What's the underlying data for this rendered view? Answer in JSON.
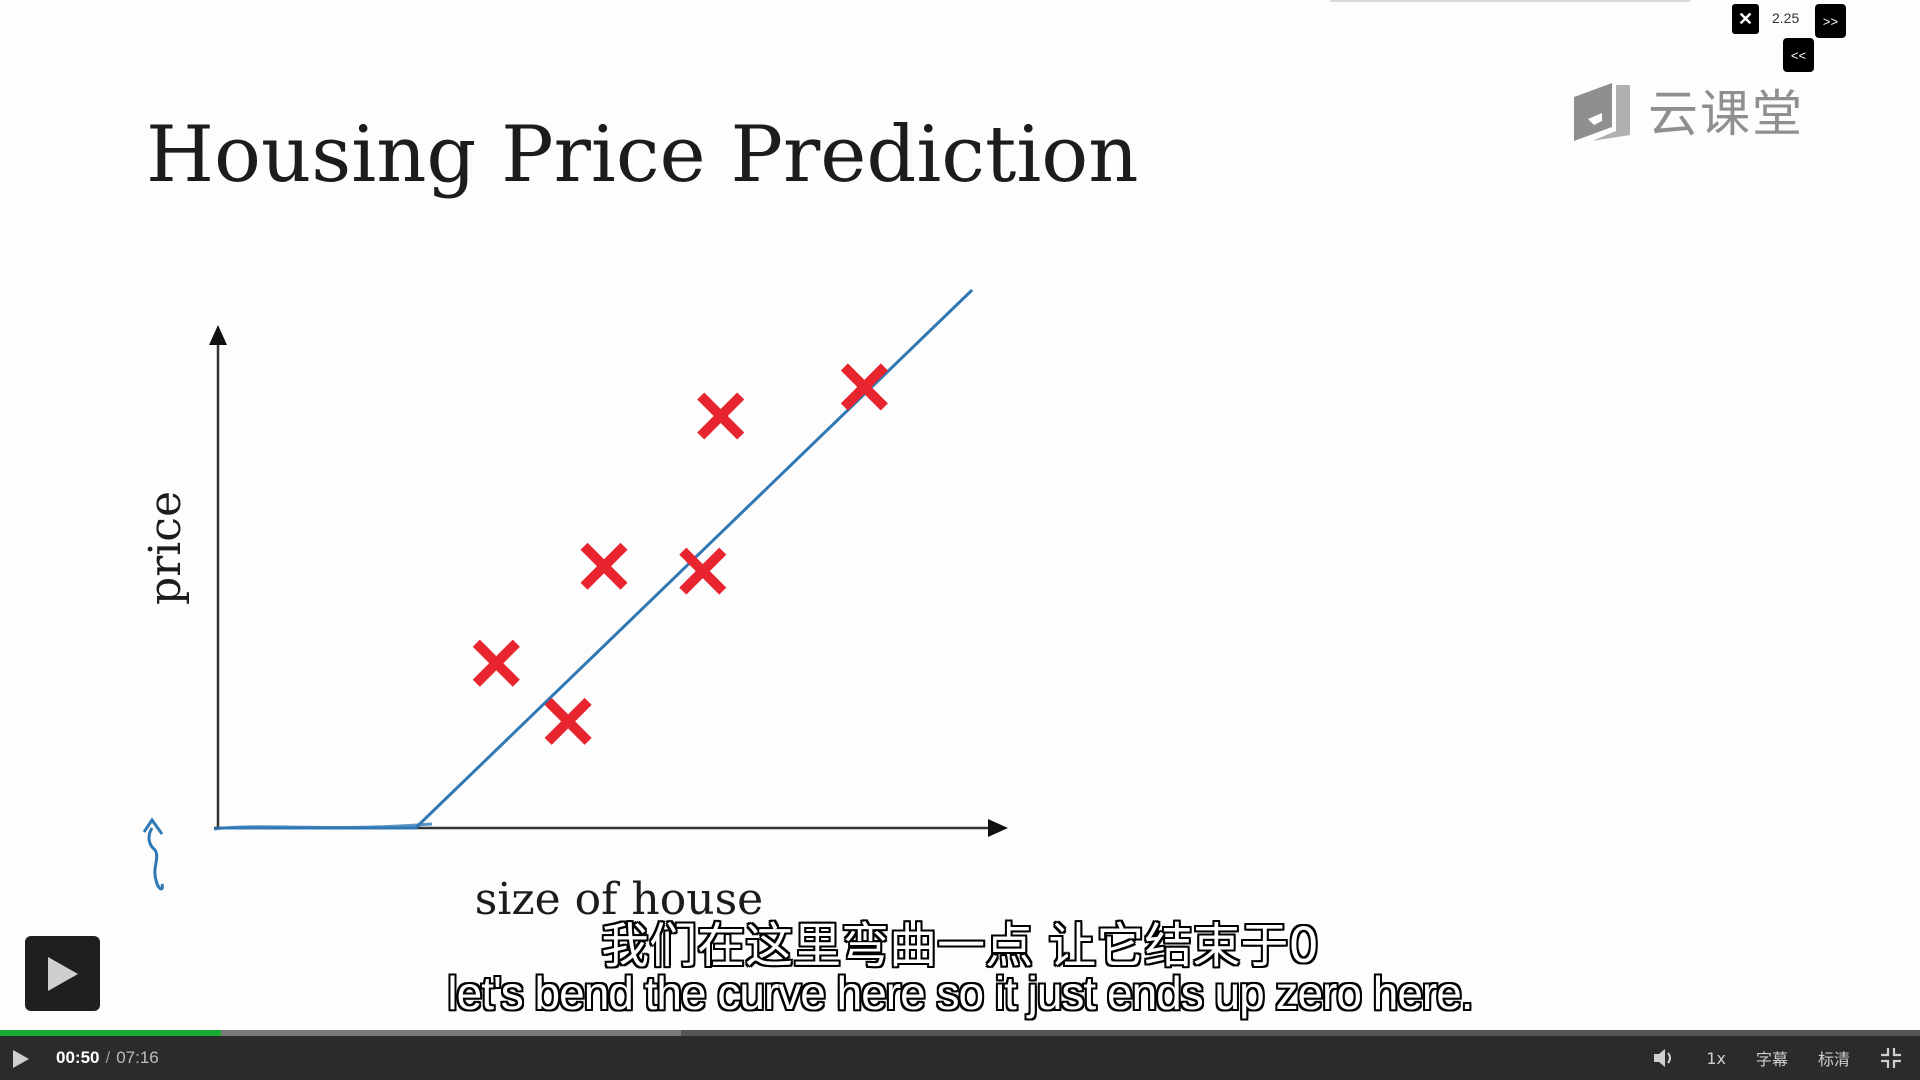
{
  "slide": {
    "title": "Housing Price Prediction",
    "brand": "云课堂"
  },
  "speed_widget": {
    "close_label": "✕",
    "speed_value": "2.25",
    "faster_label": ">>",
    "slower_label": "<<"
  },
  "chart_data": {
    "type": "scatter",
    "title": "Housing Price Prediction",
    "xlabel": "size of house",
    "ylabel": "price",
    "points": [
      {
        "x": 3.1,
        "y": 3.4
      },
      {
        "x": 3.9,
        "y": 2.2
      },
      {
        "x": 4.3,
        "y": 5.4
      },
      {
        "x": 5.4,
        "y": 5.3
      },
      {
        "x": 5.6,
        "y": 8.5
      },
      {
        "x": 7.2,
        "y": 9.1
      }
    ],
    "fit_line": [
      {
        "x": 0,
        "y": 0
      },
      {
        "x": 2.2,
        "y": 0
      },
      {
        "x": 8.4,
        "y": 11.1
      }
    ],
    "xlim": [
      0,
      8.8
    ],
    "ylim": [
      0,
      11.1
    ],
    "grid": false,
    "colors": {
      "points": "#e8242e",
      "line": "#2f78b4",
      "axes": "#222222"
    }
  },
  "subtitles": {
    "zh": "我们在这里弯曲一点 让它结束于0",
    "en": "let's bend the curve here so it just ends up zero here."
  },
  "player": {
    "current_time": "00:50",
    "separator": "/",
    "total_time": "07:16",
    "progress": 0.115,
    "speed_label": "1x",
    "captions_label": "字幕",
    "quality_label": "标清",
    "icons": [
      "play-icon",
      "volume-icon",
      "fullscreen-exit-icon"
    ],
    "accent": "#1aab33"
  }
}
